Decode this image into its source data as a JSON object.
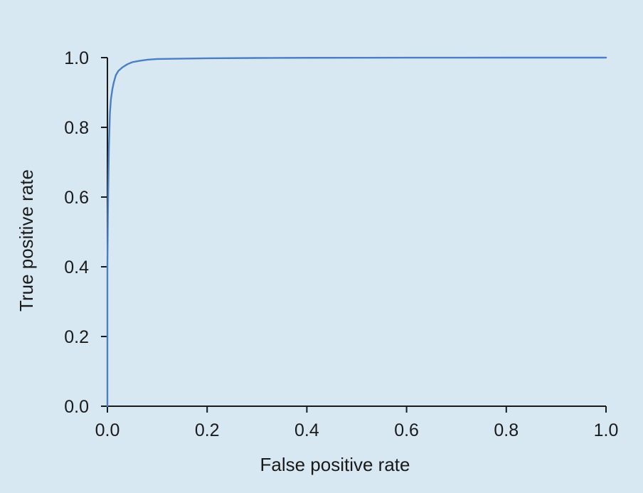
{
  "chart_data": {
    "type": "line",
    "title": "",
    "xlabel": "False positive rate",
    "ylabel": "True positive rate",
    "xlim": [
      0.0,
      1.0
    ],
    "ylim": [
      0.0,
      1.0
    ],
    "xticks": [
      "0.0",
      "0.2",
      "0.4",
      "0.6",
      "0.8",
      "1.0"
    ],
    "yticks": [
      "0.0",
      "0.2",
      "0.4",
      "0.6",
      "0.8",
      "1.0"
    ],
    "grid": false,
    "legend": "none",
    "series_color": "#4a7fc4",
    "background_color": "#d8e8f2",
    "series": [
      {
        "x": [
          0.0,
          0.0,
          0.001,
          0.002,
          0.003,
          0.005,
          0.007,
          0.01,
          0.013,
          0.017,
          0.022,
          0.03,
          0.04,
          0.05,
          0.065,
          0.08,
          0.1,
          0.15,
          0.2,
          0.3,
          0.4,
          0.5,
          0.6,
          0.7,
          0.8,
          0.9,
          1.0
        ],
        "y": [
          0.0,
          0.4,
          0.55,
          0.65,
          0.74,
          0.84,
          0.88,
          0.91,
          0.93,
          0.95,
          0.962,
          0.972,
          0.981,
          0.987,
          0.991,
          0.994,
          0.996,
          0.997,
          0.998,
          0.999,
          0.9995,
          0.9997,
          0.9998,
          0.9999,
          1.0,
          1.0,
          1.0
        ]
      }
    ]
  }
}
